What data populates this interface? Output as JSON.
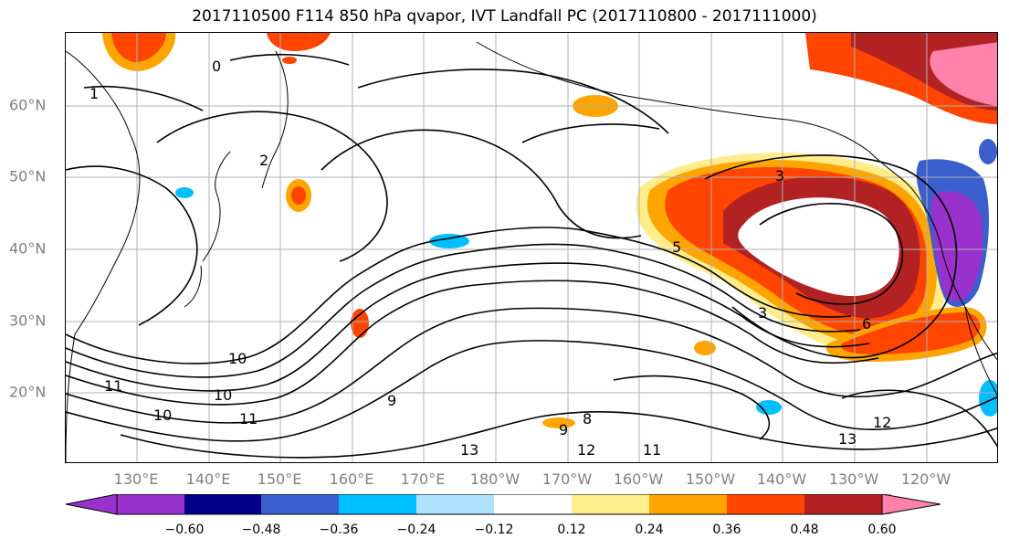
{
  "title": "2017110500 F114 850 hPa qvapor, IVT Landfall PC (2017110800 - 2017111000)",
  "lat_labels": [
    "60°N",
    "50°N",
    "40°N",
    "30°N",
    "20°N"
  ],
  "lon_labels": [
    "130°E",
    "140°E",
    "150°E",
    "160°E",
    "170°E",
    "180°W",
    "170°W",
    "160°W",
    "150°W",
    "140°W",
    "130°W",
    "120°W"
  ],
  "contour_labels": [
    "1",
    "0",
    "2",
    "3",
    "3",
    "5",
    "6",
    "10",
    "10",
    "11",
    "10",
    "11",
    "12",
    "13",
    "13",
    "12",
    "11",
    "8",
    "9",
    "9"
  ],
  "colorbar": {
    "ticks": [
      "−0.60",
      "−0.48",
      "−0.36",
      "−0.24",
      "−0.12",
      "0.12",
      "0.24",
      "0.36",
      "0.48",
      "0.60"
    ],
    "colors": [
      "#9932cc",
      "#00008b",
      "#3a5fcd",
      "#00bfff",
      "#b0e2ff",
      "#ffffff",
      "#ffec8b",
      "#ffa500",
      "#ff4500",
      "#b22222",
      "#ff82ab"
    ],
    "edge_color": "#000000"
  },
  "colors": {
    "grid": "#b0b0b0",
    "contour": "#000000",
    "coast": "#000000",
    "tick_label": "#808080"
  }
}
